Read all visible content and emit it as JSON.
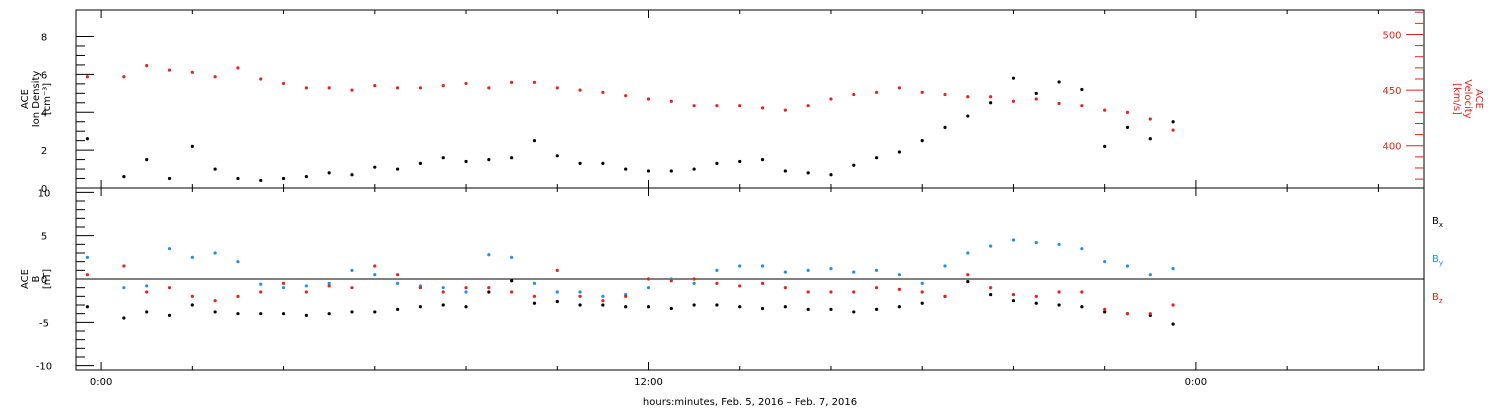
{
  "chart_data": [
    {
      "type": "scatter",
      "panel": "top",
      "ylabel_lines": [
        "ACE",
        "Ion Density",
        "[cm⁻³]"
      ],
      "ylim": [
        0,
        9.4
      ],
      "yticks": [
        0,
        2,
        4,
        6,
        8
      ],
      "y2label_lines": [
        "ACE",
        "Velocity",
        "[km/s]"
      ],
      "y2lim": [
        362,
        522
      ],
      "y2ticks": [
        400,
        450,
        500
      ],
      "y2_color": "#e8211a",
      "series": [
        {
          "name": "Ion Density",
          "axis": "left",
          "color": "#000000",
          "x": [
            -0.3,
            0.5,
            1.0,
            1.5,
            2.0,
            2.5,
            3.0,
            3.5,
            4.0,
            4.5,
            5.0,
            5.5,
            6.0,
            6.5,
            7.0,
            7.5,
            8.0,
            8.5,
            9.0,
            9.5,
            10.0,
            10.5,
            11.0,
            11.5,
            12.0,
            12.5,
            13.0,
            13.5,
            14.0,
            14.5,
            15.0,
            15.5,
            16.0,
            16.5,
            17.0,
            17.5,
            18.0,
            18.5,
            19.0,
            19.5,
            20.0,
            20.5,
            21.0,
            21.5,
            22.0,
            22.5,
            23.0,
            23.5
          ],
          "values": [
            2.6,
            0.6,
            1.5,
            0.5,
            2.2,
            1.0,
            0.5,
            0.4,
            0.5,
            0.6,
            0.8,
            0.7,
            1.1,
            1.0,
            1.3,
            1.6,
            1.4,
            1.5,
            1.6,
            2.5,
            1.7,
            1.3,
            1.3,
            1.0,
            0.9,
            0.9,
            1.0,
            1.3,
            1.4,
            1.5,
            0.9,
            0.8,
            0.7,
            1.2,
            1.6,
            1.9,
            2.5,
            3.2,
            3.8,
            4.5,
            5.8,
            5.0,
            5.6,
            5.2,
            2.2,
            3.2,
            2.6,
            3.5
          ]
        },
        {
          "name": "Velocity",
          "axis": "right",
          "color": "#e8211a",
          "x": [
            -0.3,
            0.5,
            1.0,
            1.5,
            2.0,
            2.5,
            3.0,
            3.5,
            4.0,
            4.5,
            5.0,
            5.5,
            6.0,
            6.5,
            7.0,
            7.5,
            8.0,
            8.5,
            9.0,
            9.5,
            10.0,
            10.5,
            11.0,
            11.5,
            12.0,
            12.5,
            13.0,
            13.5,
            14.0,
            14.5,
            15.0,
            15.5,
            16.0,
            16.5,
            17.0,
            17.5,
            18.0,
            18.5,
            19.0,
            19.5,
            20.0,
            20.5,
            21.0,
            21.5,
            22.0,
            22.5,
            23.0,
            23.5
          ],
          "values": [
            462,
            462,
            472,
            468,
            466,
            462,
            470,
            460,
            456,
            452,
            452,
            450,
            454,
            452,
            452,
            454,
            456,
            452,
            457,
            457,
            452,
            450,
            448,
            445,
            442,
            440,
            436,
            436,
            436,
            434,
            432,
            436,
            442,
            446,
            448,
            452,
            448,
            446,
            444,
            444,
            440,
            442,
            438,
            436,
            432,
            430,
            424,
            414
          ]
        }
      ]
    },
    {
      "type": "scatter",
      "panel": "bottom",
      "ylabel_lines": [
        "ACE",
        "B",
        "[nT]"
      ],
      "ylim": [
        -10.5,
        10.5
      ],
      "yticks": [
        -10,
        -5,
        0,
        5,
        10
      ],
      "series": [
        {
          "name": "Bₓ",
          "color": "#000000",
          "x": [
            -0.3,
            0.5,
            1.0,
            1.5,
            2.0,
            2.5,
            3.0,
            3.5,
            4.0,
            4.5,
            5.0,
            5.5,
            6.0,
            6.5,
            7.0,
            7.5,
            8.0,
            8.5,
            9.0,
            9.5,
            10.0,
            10.5,
            11.0,
            11.5,
            12.0,
            12.5,
            13.0,
            13.5,
            14.0,
            14.5,
            15.0,
            15.5,
            16.0,
            16.5,
            17.0,
            17.5,
            18.0,
            18.5,
            19.0,
            19.5,
            20.0,
            20.5,
            21.0,
            21.5,
            22.0,
            22.5,
            23.0,
            23.5
          ],
          "values": [
            -3.2,
            -4.5,
            -3.8,
            -4.2,
            -3.0,
            -3.8,
            -4.0,
            -4.0,
            -4.0,
            -4.2,
            -4.0,
            -3.8,
            -3.8,
            -3.5,
            -3.2,
            -3.0,
            -3.2,
            -1.5,
            -0.2,
            -2.8,
            -2.6,
            -3.0,
            -3.0,
            -3.2,
            -3.2,
            -3.4,
            -3.0,
            -3.0,
            -3.2,
            -3.4,
            -3.2,
            -3.5,
            -3.5,
            -3.8,
            -3.5,
            -3.2,
            -2.8,
            -2.0,
            -0.3,
            -1.8,
            -2.5,
            -2.8,
            -3.0,
            -3.2,
            -3.8,
            -4.0,
            -4.2,
            -5.2
          ]
        },
        {
          "name": "Bᵧ",
          "color": "#1f8fe8",
          "x": [
            -0.3,
            0.5,
            1.0,
            1.5,
            2.0,
            2.5,
            3.0,
            3.5,
            4.0,
            4.5,
            5.0,
            5.5,
            6.0,
            6.5,
            7.0,
            7.5,
            8.0,
            8.5,
            9.0,
            9.5,
            10.0,
            10.5,
            11.0,
            11.5,
            12.0,
            12.5,
            13.0,
            13.5,
            14.0,
            14.5,
            15.0,
            15.5,
            16.0,
            16.5,
            17.0,
            17.5,
            18.0,
            18.5,
            19.0,
            19.5,
            20.0,
            20.5,
            21.0,
            21.5,
            22.0,
            22.5,
            23.0,
            23.5
          ],
          "values": [
            2.5,
            -1.0,
            -0.8,
            3.5,
            2.5,
            3.0,
            2.0,
            -0.6,
            -1.0,
            -0.8,
            -0.5,
            1.0,
            0.5,
            -0.5,
            -0.8,
            -1.0,
            -1.5,
            2.8,
            2.5,
            -0.5,
            -1.5,
            -1.5,
            -2.0,
            -1.8,
            -1.0,
            0.0,
            -0.5,
            1.0,
            1.5,
            1.5,
            0.8,
            1.0,
            1.2,
            0.8,
            1.0,
            0.5,
            -0.5,
            1.5,
            3.0,
            3.8,
            4.5,
            4.2,
            4.0,
            3.5,
            2.0,
            1.5,
            0.5,
            1.2
          ]
        },
        {
          "name": "B_z",
          "color": "#e8211a",
          "x": [
            -0.3,
            0.5,
            1.0,
            1.5,
            2.0,
            2.5,
            3.0,
            3.5,
            4.0,
            4.5,
            5.0,
            5.5,
            6.0,
            6.5,
            7.0,
            7.5,
            8.0,
            8.5,
            9.0,
            9.5,
            10.0,
            10.5,
            11.0,
            11.5,
            12.0,
            12.5,
            13.0,
            13.5,
            14.0,
            14.5,
            15.0,
            15.5,
            16.0,
            16.5,
            17.0,
            17.5,
            18.0,
            18.5,
            19.0,
            19.5,
            20.0,
            20.5,
            21.0,
            21.5,
            22.0,
            22.5,
            23.0,
            23.5
          ],
          "values": [
            0.5,
            1.5,
            -1.5,
            -1.0,
            -2.0,
            -2.5,
            -2.0,
            -1.5,
            -0.5,
            -1.5,
            -0.8,
            -1.0,
            1.5,
            0.5,
            -1.0,
            -1.5,
            -1.0,
            -1.0,
            -1.5,
            -2.0,
            1.0,
            -2.0,
            -2.5,
            -2.0,
            0.0,
            -0.2,
            0.0,
            -0.5,
            -0.8,
            -0.5,
            -1.0,
            -1.5,
            -1.5,
            -1.5,
            -1.0,
            -1.2,
            -1.5,
            -2.0,
            0.5,
            -1.0,
            -1.8,
            -2.0,
            -1.5,
            -1.5,
            -3.5,
            -4.0,
            -4.0,
            -3.0
          ]
        }
      ]
    }
  ],
  "x_axis": {
    "range_hours": [
      -0.55,
      29.0
    ],
    "major_ticks": [
      0,
      12,
      24
    ],
    "major_labels": [
      "0:00",
      "12:00",
      "0:00"
    ],
    "minor_tick_interval_hours": 2,
    "title": "hours:minutes, Feb.  5, 2016 – Feb.  7, 2016"
  },
  "legend": {
    "bx": "B",
    "bx_sub": "x",
    "by": "B",
    "by_sub": "y",
    "bz": "B",
    "bz_sub": "z"
  }
}
